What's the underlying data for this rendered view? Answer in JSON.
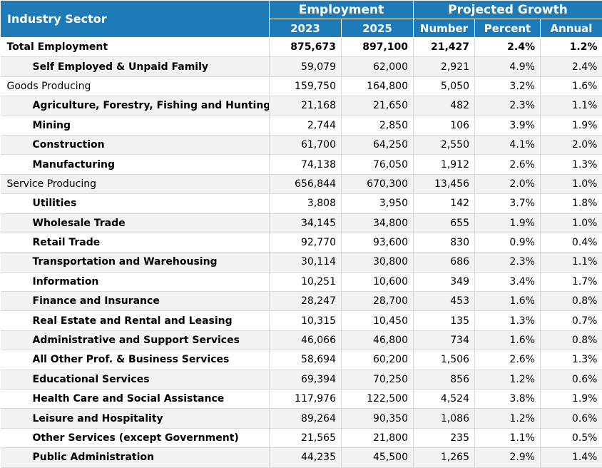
{
  "header": {
    "sector": "Industry Sector",
    "employment": "Employment",
    "growth": "Projected Growth",
    "columns": [
      "2023",
      "2025",
      "Number",
      "Percent",
      "Annual"
    ]
  },
  "table": {
    "rows": [
      [
        "Total Employment",
        "875,673",
        "897,100",
        "21,427",
        "2.4%",
        "1.2%"
      ],
      [
        "Self Employed & Unpaid Family",
        "59,079",
        "62,000",
        "2,921",
        "4.9%",
        "2.4%"
      ],
      [
        "Goods Producing",
        "159,750",
        "164,800",
        "5,050",
        "3.2%",
        "1.6%"
      ],
      [
        "Agriculture, Forestry, Fishing and Hunting",
        "21,168",
        "21,650",
        "482",
        "2.3%",
        "1.1%"
      ],
      [
        "Mining",
        "2,744",
        "2,850",
        "106",
        "3.9%",
        "1.9%"
      ],
      [
        "Construction",
        "61,700",
        "64,250",
        "2,550",
        "4.1%",
        "2.0%"
      ],
      [
        "Manufacturing",
        "74,138",
        "76,050",
        "1,912",
        "2.6%",
        "1.3%"
      ],
      [
        "Service Producing",
        "656,844",
        "670,300",
        "13,456",
        "2.0%",
        "1.0%"
      ],
      [
        "Utilities",
        "3,808",
        "3,950",
        "142",
        "3.7%",
        "1.8%"
      ],
      [
        "Wholesale Trade",
        "34,145",
        "34,800",
        "655",
        "1.9%",
        "1.0%"
      ],
      [
        "Retail Trade",
        "92,770",
        "93,600",
        "830",
        "0.9%",
        "0.4%"
      ],
      [
        "Transportation and Warehousing",
        "30,114",
        "30,800",
        "686",
        "2.3%",
        "1.1%"
      ],
      [
        "Information",
        "10,251",
        "10,600",
        "349",
        "3.4%",
        "1.7%"
      ],
      [
        "Finance and Insurance",
        "28,247",
        "28,700",
        "453",
        "1.6%",
        "0.8%"
      ],
      [
        "Real Estate and Rental and Leasing",
        "10,315",
        "10,450",
        "135",
        "1.3%",
        "0.7%"
      ],
      [
        "Administrative and Support Services",
        "46,066",
        "46,800",
        "734",
        "1.6%",
        "0.8%"
      ],
      [
        "All Other Prof. & Business Services",
        "58,694",
        "60,200",
        "1,506",
        "2.6%",
        "1.3%"
      ],
      [
        "Educational Services",
        "69,394",
        "70,250",
        "856",
        "1.2%",
        "0.6%"
      ],
      [
        "Health Care and Social Assistance",
        "117,976",
        "122,500",
        "4,524",
        "3.8%",
        "1.9%"
      ],
      [
        "Leisure and Hospitality",
        "89,264",
        "90,350",
        "1,086",
        "1.2%",
        "0.6%"
      ],
      [
        "Other Services (except Government)",
        "21,565",
        "21,800",
        "235",
        "1.1%",
        "0.5%"
      ],
      [
        "Public Administration",
        "44,235",
        "45,500",
        "1,265",
        "2.9%",
        "1.4%"
      ]
    ]
  }
}
